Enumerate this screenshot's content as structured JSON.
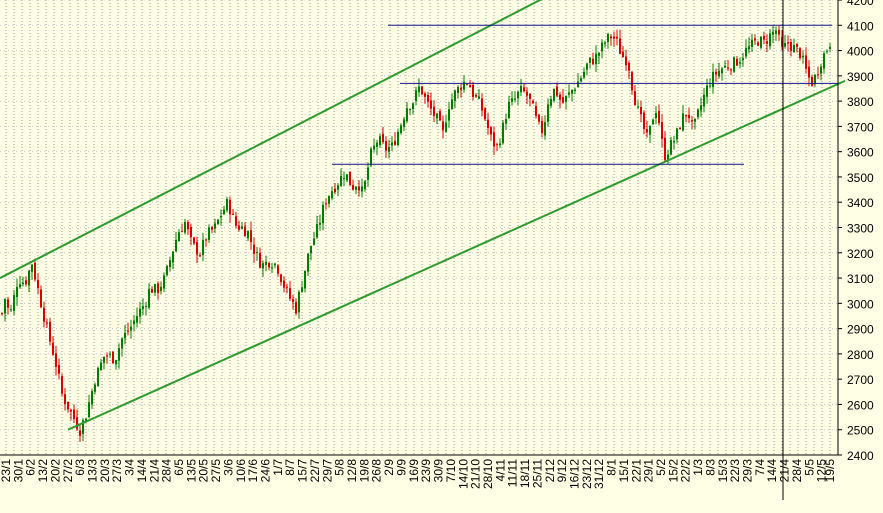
{
  "chart_data": {
    "type": "candlestick",
    "title": "",
    "xlabel": "",
    "ylabel": "",
    "ylim": [
      2400,
      4200
    ],
    "yticks": [
      2400,
      2500,
      2600,
      2700,
      2800,
      2900,
      3000,
      3100,
      3200,
      3300,
      3400,
      3500,
      3600,
      3700,
      3800,
      3900,
      4000,
      4100,
      4200
    ],
    "xticks": [
      "23/1",
      "30/1",
      "6/2",
      "13/2",
      "20/2",
      "27/2",
      "6/3",
      "13/3",
      "20/3",
      "27/3",
      "3/4",
      "14/4",
      "21/4",
      "28/4",
      "6/5",
      "13/5",
      "20/5",
      "27/5",
      "3/6",
      "10/6",
      "17/6",
      "24/6",
      "1/7",
      "8/7",
      "15/7",
      "22/7",
      "29/7",
      "5/8",
      "12/8",
      "19/8",
      "26/8",
      "2/9",
      "9/9",
      "16/9",
      "23/9",
      "30/9",
      "7/10",
      "14/10",
      "21/10",
      "28/10",
      "4/11",
      "11/11",
      "18/11",
      "25/11",
      "2/12",
      "9/12",
      "16/12",
      "23/12",
      "31/12",
      "8/1",
      "15/1",
      "22/1",
      "29/1",
      "5/2",
      "15/2",
      "22/2",
      "1/3",
      "8/3",
      "15/3",
      "22/3",
      "29/3",
      "7/4",
      "14/4",
      "21/4",
      "28/4",
      "5/5",
      "12/5",
      "19/5"
    ],
    "grid": true,
    "up_color": "#008000",
    "down_color": "#e00000",
    "price_path": [
      [
        0,
        2920
      ],
      [
        5,
        3020
      ],
      [
        10,
        2950
      ],
      [
        18,
        3100
      ],
      [
        25,
        3080
      ],
      [
        32,
        3160
      ],
      [
        40,
        3020
      ],
      [
        48,
        2880
      ],
      [
        55,
        2780
      ],
      [
        62,
        2640
      ],
      [
        72,
        2560
      ],
      [
        80,
        2500
      ],
      [
        86,
        2560
      ],
      [
        95,
        2700
      ],
      [
        105,
        2800
      ],
      [
        115,
        2780
      ],
      [
        122,
        2860
      ],
      [
        130,
        2900
      ],
      [
        138,
        2960
      ],
      [
        145,
        3000
      ],
      [
        150,
        3060
      ],
      [
        157,
        3050
      ],
      [
        165,
        3100
      ],
      [
        172,
        3200
      ],
      [
        178,
        3280
      ],
      [
        185,
        3320
      ],
      [
        192,
        3230
      ],
      [
        200,
        3200
      ],
      [
        207,
        3270
      ],
      [
        215,
        3300
      ],
      [
        222,
        3360
      ],
      [
        228,
        3400
      ],
      [
        235,
        3310
      ],
      [
        242,
        3300
      ],
      [
        248,
        3280
      ],
      [
        255,
        3200
      ],
      [
        262,
        3150
      ],
      [
        270,
        3170
      ],
      [
        277,
        3150
      ],
      [
        283,
        3080
      ],
      [
        290,
        3020
      ],
      [
        296,
        2980
      ],
      [
        303,
        3100
      ],
      [
        310,
        3220
      ],
      [
        318,
        3300
      ],
      [
        325,
        3400
      ],
      [
        330,
        3440
      ],
      [
        338,
        3480
      ],
      [
        345,
        3520
      ],
      [
        352,
        3460
      ],
      [
        358,
        3480
      ],
      [
        363,
        3430
      ],
      [
        370,
        3580
      ],
      [
        378,
        3650
      ],
      [
        385,
        3610
      ],
      [
        392,
        3620
      ],
      [
        400,
        3700
      ],
      [
        407,
        3780
      ],
      [
        413,
        3800
      ],
      [
        420,
        3860
      ],
      [
        426,
        3800
      ],
      [
        432,
        3760
      ],
      [
        438,
        3720
      ],
      [
        443,
        3670
      ],
      [
        448,
        3780
      ],
      [
        455,
        3830
      ],
      [
        462,
        3870
      ],
      [
        468,
        3880
      ],
      [
        474,
        3820
      ],
      [
        480,
        3790
      ],
      [
        486,
        3720
      ],
      [
        492,
        3640
      ],
      [
        497,
        3620
      ],
      [
        502,
        3680
      ],
      [
        508,
        3780
      ],
      [
        514,
        3800
      ],
      [
        520,
        3840
      ],
      [
        526,
        3830
      ],
      [
        532,
        3780
      ],
      [
        538,
        3700
      ],
      [
        543,
        3680
      ],
      [
        548,
        3800
      ],
      [
        555,
        3850
      ],
      [
        562,
        3790
      ],
      [
        568,
        3820
      ],
      [
        575,
        3860
      ],
      [
        582,
        3900
      ],
      [
        588,
        3950
      ],
      [
        595,
        3970
      ],
      [
        600,
        4000
      ],
      [
        606,
        4040
      ],
      [
        612,
        4060
      ],
      [
        617,
        4030
      ],
      [
        622,
        3980
      ],
      [
        628,
        3960
      ],
      [
        633,
        3840
      ],
      [
        638,
        3760
      ],
      [
        643,
        3700
      ],
      [
        648,
        3640
      ],
      [
        652,
        3730
      ],
      [
        657,
        3780
      ],
      [
        660,
        3690
      ],
      [
        664,
        3580
      ],
      [
        670,
        3620
      ],
      [
        676,
        3660
      ],
      [
        682,
        3730
      ],
      [
        688,
        3760
      ],
      [
        693,
        3680
      ],
      [
        699,
        3760
      ],
      [
        705,
        3830
      ],
      [
        710,
        3880
      ],
      [
        716,
        3910
      ],
      [
        722,
        3930
      ],
      [
        728,
        3940
      ],
      [
        734,
        3950
      ],
      [
        740,
        3970
      ],
      [
        746,
        4000
      ],
      [
        752,
        4020
      ],
      [
        758,
        4040
      ],
      [
        764,
        4030
      ],
      [
        770,
        4060
      ],
      [
        776,
        4080
      ],
      [
        782,
        4000
      ],
      [
        788,
        4030
      ],
      [
        794,
        4010
      ],
      [
        800,
        3990
      ],
      [
        806,
        3920
      ],
      [
        811,
        3870
      ],
      [
        816,
        3900
      ],
      [
        821,
        3960
      ],
      [
        826,
        4000
      ],
      [
        831,
        4040
      ]
    ]
  },
  "horizontal_levels": [
    4100,
    3870,
    3550
  ],
  "channel_color": "#2e9b2e",
  "level_color": "#14148c",
  "cursor_color": "#000000",
  "background_color": "#ffffe6",
  "axis_color": "#000000"
}
